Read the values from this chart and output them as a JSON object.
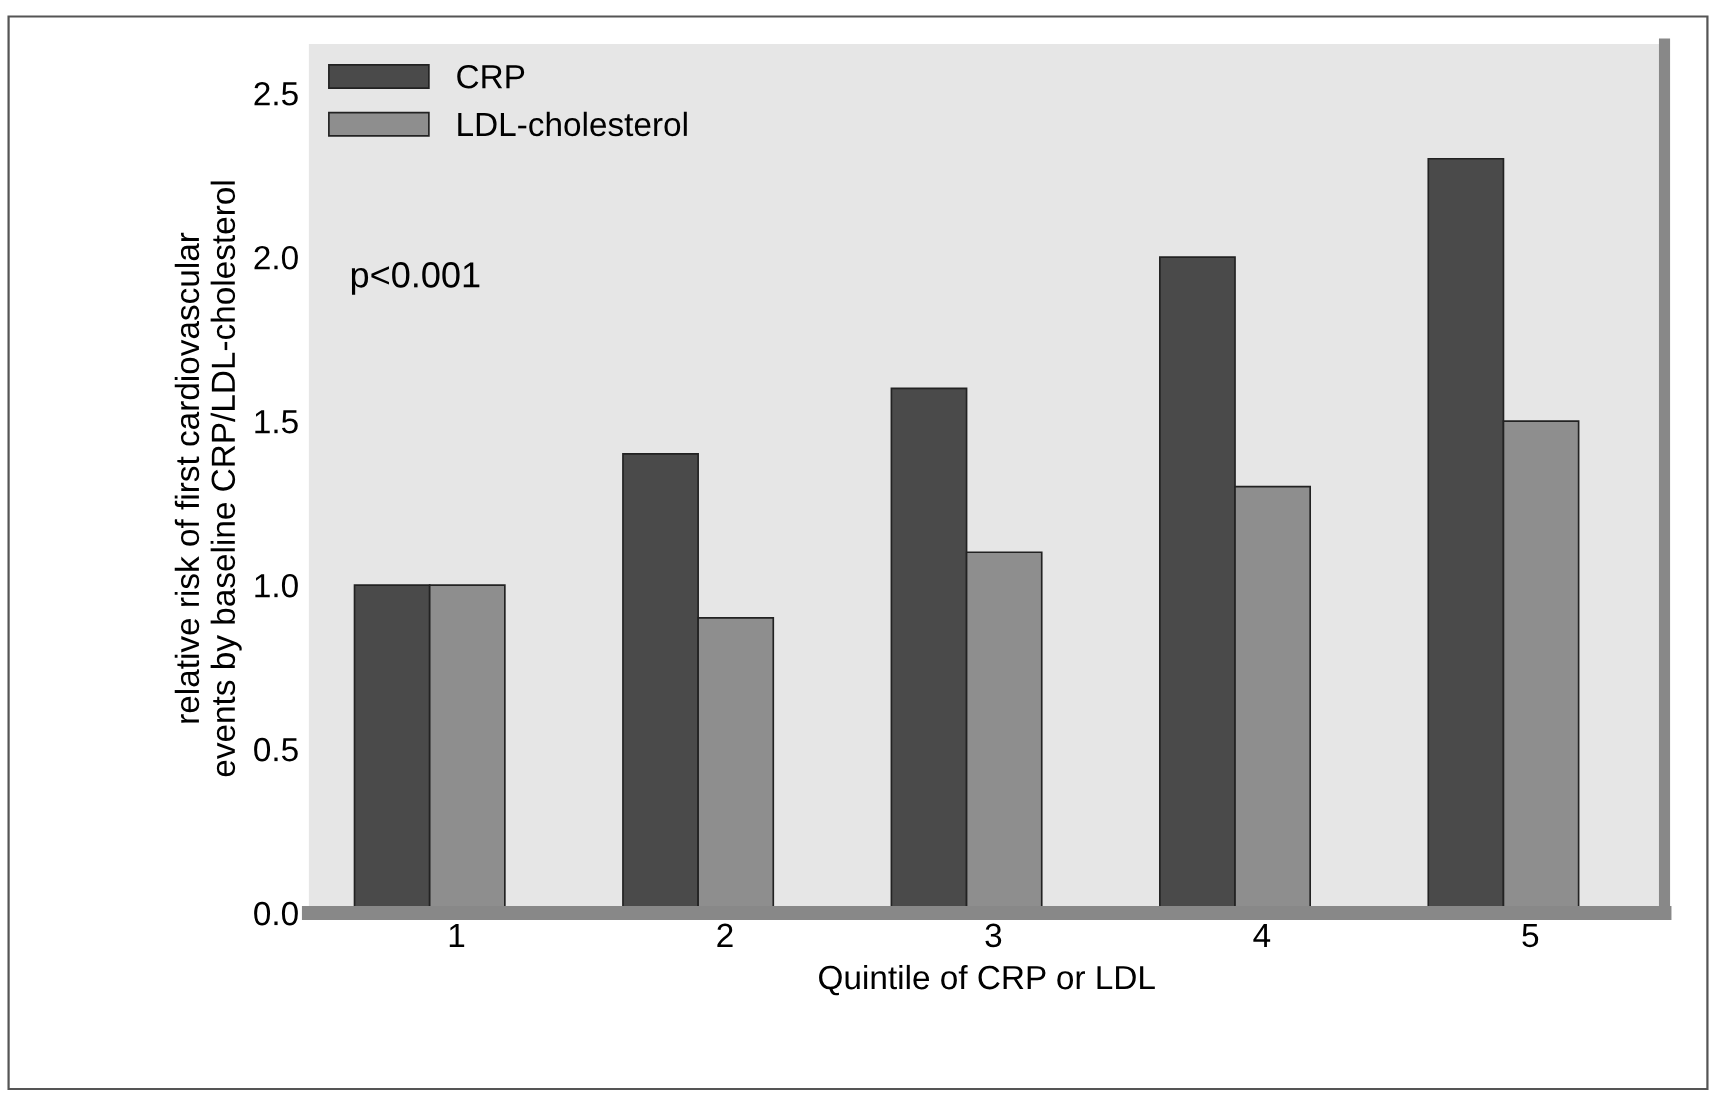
{
  "chart_data": {
    "type": "bar",
    "xlabel": "Quintile of CRP or LDL",
    "ylabel": "relative risk of first cardiovascular\nevents by baseline CRP/LDL-cholesterol",
    "categories": [
      "1",
      "2",
      "3",
      "4",
      "5"
    ],
    "series": [
      {
        "name": "CRP",
        "color": "#4a4a4a",
        "values": [
          1.0,
          1.4,
          1.6,
          2.0,
          2.3
        ]
      },
      {
        "name": "LDL-cholesterol",
        "color": "#8e8e8e",
        "values": [
          1.0,
          0.9,
          1.1,
          1.3,
          1.5
        ]
      }
    ],
    "ylim": [
      0,
      2.65
    ],
    "yticks": [
      {
        "value": 0,
        "label": "0.0"
      },
      {
        "value": 0.5,
        "label": "0.5"
      },
      {
        "value": 1,
        "label": "1.0"
      },
      {
        "value": 1.5,
        "label": "1.5"
      },
      {
        "value": 2,
        "label": "2.0"
      },
      {
        "value": 2.5,
        "label": "2.5"
      }
    ],
    "annotations": [
      "p<0.001"
    ],
    "grid": false,
    "legend": "top left"
  }
}
